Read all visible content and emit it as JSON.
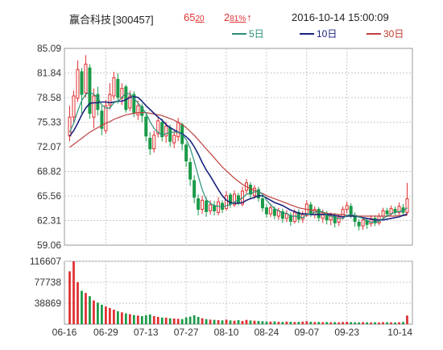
{
  "header": {
    "stock_name": "赢合科技",
    "stock_code": "[300457]",
    "price_main": "65",
    "price_sub": "20",
    "change_main": "2",
    "change_sub": "81%",
    "change_arrow": "↑",
    "datetime": "2016-10-14  15:00:09"
  },
  "legend": [
    {
      "label": "5日",
      "color": "#2a8f7a"
    },
    {
      "label": "10日",
      "color": "#1a237e"
    },
    {
      "label": "30日",
      "color": "#c04040"
    }
  ],
  "colors": {
    "up": "#e03030",
    "down": "#1a9a48",
    "ma5": "#2a8f7a",
    "ma10": "#1a237e",
    "ma30": "#c04040",
    "grid": "#c8c8c8"
  },
  "chart_data": [
    {
      "type": "candlestick",
      "title": "赢合科技[300457]",
      "ylim": [
        59.06,
        85.09
      ],
      "yticks": [
        "85.09",
        "81.84",
        "78.58",
        "75.33",
        "72.07",
        "68.82",
        "65.56",
        "62.31",
        "59.06"
      ],
      "xticks": [
        "06-16",
        "06-29",
        "07-13",
        "07-27",
        "08-10",
        "08-24",
        "09-07",
        "09-23",
        "10-14"
      ],
      "xtick_index": [
        0,
        9,
        19,
        29,
        39,
        49,
        59,
        69,
        84
      ],
      "grid": true,
      "candles": [
        [
          73.5,
          76.0,
          77.5,
          72.8
        ],
        [
          76.0,
          78.8,
          79.5,
          75.2
        ],
        [
          78.5,
          82.3,
          83.5,
          78.0
        ],
        [
          82.0,
          79.0,
          82.5,
          76.5
        ],
        [
          79.2,
          83.0,
          84.2,
          78.6
        ],
        [
          82.5,
          76.5,
          83.0,
          75.8
        ],
        [
          76.0,
          78.8,
          79.8,
          74.5
        ],
        [
          79.0,
          77.0,
          80.0,
          76.2
        ],
        [
          76.8,
          74.5,
          77.5,
          73.6
        ],
        [
          74.2,
          77.5,
          78.3,
          73.8
        ],
        [
          77.6,
          79.0,
          80.5,
          77.0
        ],
        [
          78.8,
          81.2,
          82.0,
          78.3
        ],
        [
          81.0,
          78.6,
          81.8,
          77.8
        ],
        [
          78.5,
          79.8,
          80.5,
          77.6
        ],
        [
          80.0,
          77.0,
          80.3,
          76.6
        ],
        [
          77.2,
          78.8,
          79.5,
          76.8
        ],
        [
          79.0,
          76.5,
          79.4,
          76.0
        ],
        [
          76.3,
          77.5,
          78.2,
          75.6
        ],
        [
          77.4,
          76.2,
          77.8,
          75.3
        ],
        [
          76.0,
          73.5,
          76.4,
          72.8
        ],
        [
          73.2,
          71.8,
          74.0,
          71.0
        ],
        [
          71.8,
          73.6,
          74.2,
          71.3
        ],
        [
          73.8,
          75.5,
          76.1,
          73.3
        ],
        [
          75.3,
          73.4,
          75.8,
          72.8
        ],
        [
          73.5,
          74.8,
          75.4,
          72.6
        ],
        [
          74.6,
          72.8,
          75.0,
          72.1
        ],
        [
          72.6,
          73.6,
          74.2,
          71.9
        ],
        [
          73.4,
          75.3,
          75.9,
          72.8
        ],
        [
          75.0,
          72.5,
          75.3,
          71.6
        ],
        [
          72.3,
          70.2,
          72.6,
          69.4
        ],
        [
          70.0,
          67.8,
          70.6,
          66.9
        ],
        [
          67.6,
          65.4,
          68.3,
          64.6
        ],
        [
          65.2,
          63.8,
          65.8,
          63.0
        ],
        [
          63.8,
          65.0,
          65.6,
          63.2
        ],
        [
          64.9,
          63.5,
          65.4,
          62.8
        ],
        [
          63.6,
          64.4,
          65.0,
          63.1
        ],
        [
          64.3,
          63.6,
          64.9,
          63.0
        ],
        [
          63.4,
          64.8,
          65.4,
          63.0
        ],
        [
          64.6,
          63.8,
          65.0,
          63.3
        ],
        [
          63.9,
          65.6,
          66.2,
          63.6
        ],
        [
          65.7,
          64.5,
          66.0,
          64.0
        ],
        [
          64.4,
          65.8,
          66.3,
          64.1
        ],
        [
          65.6,
          64.7,
          66.0,
          64.3
        ],
        [
          64.5,
          66.2,
          66.8,
          64.2
        ],
        [
          66.3,
          67.3,
          67.8,
          65.8
        ],
        [
          67.0,
          65.8,
          67.4,
          65.3
        ],
        [
          65.6,
          66.6,
          67.0,
          65.2
        ],
        [
          66.4,
          65.3,
          66.8,
          64.8
        ],
        [
          65.2,
          64.0,
          65.5,
          63.5
        ],
        [
          64.0,
          63.2,
          64.5,
          62.7
        ],
        [
          63.2,
          64.0,
          64.5,
          62.8
        ],
        [
          63.8,
          63.0,
          64.2,
          62.5
        ],
        [
          62.9,
          63.6,
          64.0,
          62.4
        ],
        [
          63.5,
          62.6,
          63.9,
          62.0
        ],
        [
          62.6,
          63.2,
          63.7,
          62.1
        ],
        [
          63.0,
          62.2,
          63.4,
          61.6
        ],
        [
          62.2,
          63.4,
          63.8,
          61.9
        ],
        [
          63.4,
          62.5,
          63.8,
          62.0
        ],
        [
          62.5,
          63.1,
          63.6,
          62.0
        ],
        [
          63.0,
          64.5,
          65.0,
          62.8
        ],
        [
          64.4,
          63.2,
          64.8,
          62.8
        ],
        [
          63.1,
          63.8,
          64.2,
          62.6
        ],
        [
          63.8,
          62.7,
          64.1,
          62.2
        ],
        [
          62.6,
          63.3,
          63.8,
          62.0
        ],
        [
          63.2,
          62.4,
          63.6,
          61.8
        ],
        [
          62.4,
          63.0,
          63.4,
          61.7
        ],
        [
          63.0,
          62.0,
          63.3,
          61.4
        ],
        [
          62.1,
          62.8,
          63.2,
          61.6
        ],
        [
          62.8,
          63.8,
          64.2,
          62.4
        ],
        [
          63.8,
          64.3,
          64.8,
          63.3
        ],
        [
          64.2,
          63.0,
          64.6,
          62.6
        ],
        [
          63.0,
          62.2,
          63.4,
          61.5
        ],
        [
          62.1,
          61.6,
          62.5,
          61.0
        ],
        [
          61.6,
          62.4,
          62.8,
          61.1
        ],
        [
          62.3,
          61.8,
          62.7,
          61.2
        ],
        [
          61.9,
          62.6,
          63.0,
          61.5
        ],
        [
          62.6,
          62.0,
          63.0,
          61.6
        ],
        [
          62.0,
          62.9,
          63.3,
          61.7
        ],
        [
          62.9,
          63.6,
          64.0,
          62.5
        ],
        [
          63.6,
          63.2,
          64.0,
          62.8
        ],
        [
          63.2,
          63.9,
          64.3,
          62.9
        ],
        [
          63.8,
          63.4,
          64.2,
          63.0
        ],
        [
          63.4,
          64.2,
          64.7,
          63.1
        ],
        [
          64.0,
          63.4,
          64.5,
          63.0
        ],
        [
          63.4,
          65.2,
          67.3,
          63.1
        ]
      ],
      "ma5": [
        74.0,
        75.2,
        76.8,
        78.2,
        79.0,
        79.3,
        79.0,
        78.6,
        77.6,
        77.2,
        77.2,
        77.9,
        78.1,
        78.6,
        79.1,
        79.1,
        78.4,
        77.9,
        77.2,
        76.5,
        75.4,
        74.5,
        74.0,
        73.6,
        73.8,
        74.0,
        74.0,
        74.0,
        73.7,
        73.0,
        71.9,
        70.2,
        68.2,
        66.4,
        65.1,
        64.6,
        64.3,
        64.2,
        64.1,
        64.3,
        64.4,
        64.8,
        65.0,
        65.3,
        65.8,
        65.9,
        66.1,
        66.2,
        65.8,
        65.0,
        64.4,
        63.9,
        63.6,
        63.3,
        63.3,
        62.9,
        62.9,
        62.8,
        62.7,
        63.1,
        63.2,
        63.4,
        63.5,
        63.5,
        63.0,
        62.9,
        62.7,
        62.6,
        62.6,
        63.0,
        63.1,
        63.0,
        62.8,
        62.6,
        62.3,
        62.1,
        62.1,
        62.2,
        62.6,
        62.9,
        63.2,
        63.4,
        63.5,
        63.6,
        64.0
      ],
      "ma10": [
        73.5,
        74.2,
        75.2,
        76.3,
        77.2,
        77.8,
        77.9,
        77.9,
        78.0,
        78.0,
        77.9,
        78.0,
        78.1,
        78.1,
        78.3,
        78.6,
        78.7,
        78.6,
        78.1,
        77.5,
        77.0,
        76.5,
        76.0,
        75.6,
        75.0,
        74.6,
        74.3,
        74.0,
        73.8,
        73.4,
        72.9,
        72.1,
        71.1,
        70.0,
        69.0,
        68.2,
        67.3,
        66.4,
        65.6,
        65.0,
        64.7,
        64.6,
        64.6,
        64.7,
        65.0,
        65.2,
        65.4,
        65.6,
        65.6,
        65.3,
        65.0,
        64.7,
        64.5,
        64.3,
        64.0,
        63.7,
        63.5,
        63.3,
        63.2,
        63.2,
        63.1,
        63.1,
        63.1,
        63.1,
        63.1,
        63.1,
        63.0,
        62.9,
        62.8,
        62.9,
        62.9,
        62.9,
        62.8,
        62.7,
        62.6,
        62.5,
        62.4,
        62.4,
        62.4,
        62.5,
        62.6,
        62.7,
        62.8,
        63.0,
        63.2
      ],
      "ma30": [
        72.0,
        72.4,
        72.8,
        73.2,
        73.6,
        74.0,
        74.3,
        74.6,
        74.9,
        75.2,
        75.4,
        75.7,
        75.9,
        76.1,
        76.3,
        76.4,
        76.5,
        76.6,
        76.6,
        76.6,
        76.5,
        76.4,
        76.3,
        76.2,
        76.0,
        75.8,
        75.6,
        75.3,
        75.0,
        74.6,
        74.1,
        73.6,
        73.0,
        72.4,
        71.8,
        71.2,
        70.6,
        70.0,
        69.4,
        68.9,
        68.4,
        67.9,
        67.5,
        67.1,
        66.8,
        66.5,
        66.3,
        66.1,
        65.9,
        65.6,
        65.4,
        65.2,
        65.0,
        64.8,
        64.6,
        64.4,
        64.2,
        64.0,
        63.9,
        63.8,
        63.7,
        63.6,
        63.5,
        63.4,
        63.3,
        63.2,
        63.2,
        63.1,
        63.1,
        63.0,
        63.0,
        63.0,
        62.9,
        62.9,
        62.9,
        62.9,
        62.9,
        62.9,
        62.9,
        62.9,
        62.9,
        62.9,
        63.0,
        63.0,
        63.0
      ]
    },
    {
      "type": "bar",
      "title": "",
      "ylim": [
        0,
        116607
      ],
      "yticks": [
        "116607",
        "77738",
        "38869"
      ],
      "values": [
        98000,
        116607,
        78000,
        62000,
        58000,
        52000,
        44000,
        40000,
        36000,
        33000,
        30000,
        27000,
        24000,
        22000,
        20000,
        18500,
        17000,
        16000,
        15000,
        16500,
        18000,
        15000,
        13500,
        12500,
        12000,
        11000,
        10500,
        10000,
        9500,
        12500,
        14000,
        16500,
        13500,
        11000,
        9500,
        8500,
        8000,
        7500,
        7000,
        8500,
        7000,
        6500,
        7500,
        6000,
        8000,
        7000,
        6500,
        6000,
        5500,
        5000,
        4800,
        5200,
        4500,
        4200,
        4800,
        4500,
        4000,
        4300,
        4800,
        5500,
        4500,
        4000,
        4200,
        3800,
        4000,
        3600,
        3900,
        3500,
        4000,
        4500,
        3800,
        3600,
        3400,
        3800,
        3500,
        3300,
        3500,
        3200,
        3800,
        3600,
        3500,
        3300,
        3600,
        4200,
        16000
      ]
    }
  ]
}
